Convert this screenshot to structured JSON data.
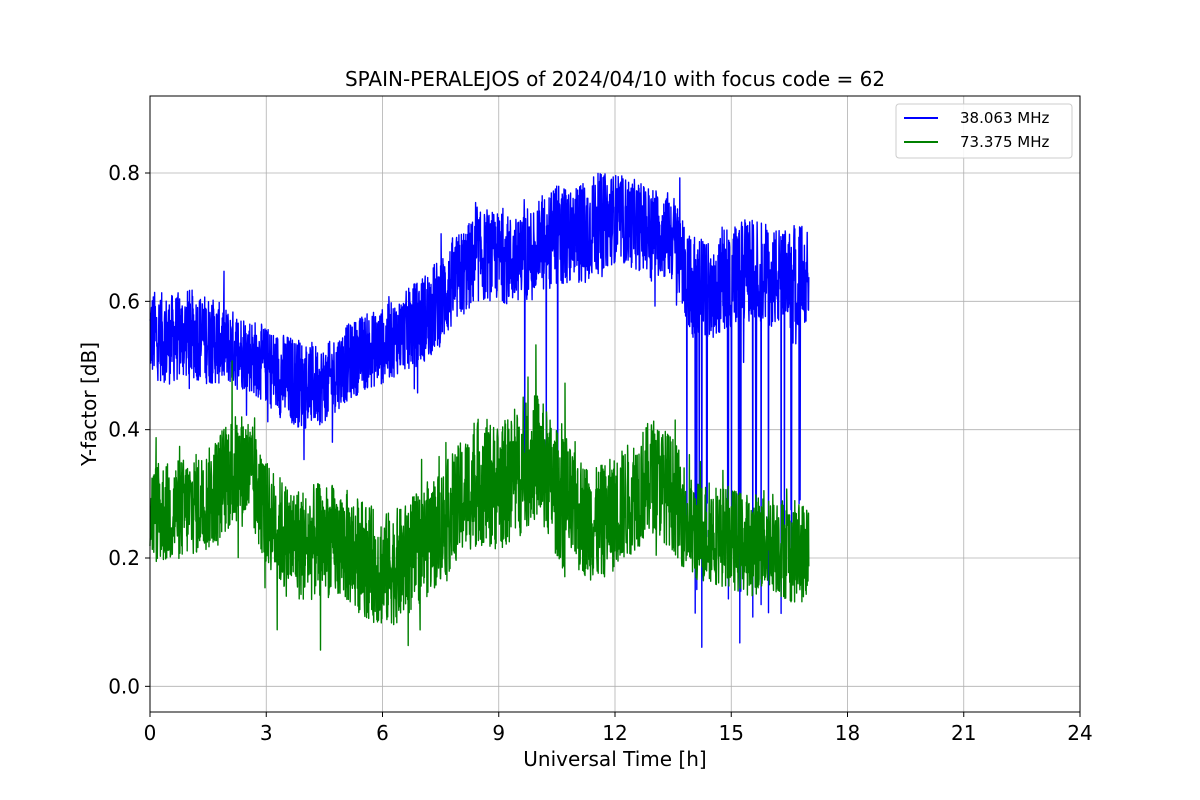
{
  "chart_data": {
    "type": "line",
    "title": "SPAIN-PERALEJOS of 2024/04/10 with focus code = 62",
    "xlabel": "Universal Time [h]",
    "ylabel": "Y-factor [dB]",
    "xlim": [
      0,
      24
    ],
    "ylim": [
      -0.04,
      0.92
    ],
    "xticks": [
      0,
      3,
      6,
      9,
      12,
      15,
      18,
      21,
      24
    ],
    "xtick_labels": [
      "0",
      "3",
      "6",
      "9",
      "12",
      "15",
      "18",
      "21",
      "24"
    ],
    "yticks": [
      0.0,
      0.2,
      0.4,
      0.6,
      0.8
    ],
    "ytick_labels": [
      "0.0",
      "0.2",
      "0.4",
      "0.6",
      "0.8"
    ],
    "grid": true,
    "legend_position": "top-right",
    "series": [
      {
        "name": "38.063 MHz",
        "color": "#0000ff",
        "x": [
          0.0,
          0.5,
          1.0,
          1.5,
          2.0,
          2.5,
          3.0,
          3.5,
          4.0,
          4.5,
          5.0,
          5.5,
          6.0,
          6.5,
          7.0,
          7.5,
          8.0,
          8.5,
          9.0,
          9.5,
          10.0,
          10.5,
          11.0,
          11.5,
          12.0,
          12.5,
          13.0,
          13.5,
          14.0,
          14.5,
          15.0,
          15.5,
          16.0,
          16.5,
          17.0
        ],
        "center": [
          0.55,
          0.54,
          0.55,
          0.54,
          0.53,
          0.52,
          0.5,
          0.48,
          0.47,
          0.47,
          0.5,
          0.52,
          0.53,
          0.55,
          0.57,
          0.6,
          0.64,
          0.67,
          0.67,
          0.66,
          0.68,
          0.7,
          0.7,
          0.72,
          0.73,
          0.72,
          0.71,
          0.7,
          0.62,
          0.62,
          0.64,
          0.65,
          0.64,
          0.63,
          0.65
        ],
        "amp": [
          0.07,
          0.07,
          0.07,
          0.07,
          0.06,
          0.06,
          0.06,
          0.07,
          0.07,
          0.06,
          0.06,
          0.06,
          0.06,
          0.06,
          0.07,
          0.07,
          0.07,
          0.07,
          0.07,
          0.07,
          0.08,
          0.08,
          0.08,
          0.08,
          0.07,
          0.07,
          0.07,
          0.07,
          0.08,
          0.08,
          0.08,
          0.08,
          0.08,
          0.08,
          0.08
        ]
      },
      {
        "name": "73.375 MHz",
        "color": "#008000",
        "x": [
          0.0,
          0.5,
          1.0,
          1.5,
          2.0,
          2.5,
          3.0,
          3.5,
          4.0,
          4.5,
          5.0,
          5.5,
          6.0,
          6.5,
          7.0,
          7.5,
          8.0,
          8.5,
          9.0,
          9.5,
          10.0,
          10.5,
          11.0,
          11.5,
          12.0,
          12.5,
          13.0,
          13.5,
          14.0,
          14.5,
          15.0,
          15.5,
          16.0,
          16.5,
          17.0
        ],
        "center": [
          0.27,
          0.27,
          0.28,
          0.29,
          0.33,
          0.34,
          0.27,
          0.23,
          0.22,
          0.23,
          0.22,
          0.2,
          0.18,
          0.19,
          0.22,
          0.25,
          0.29,
          0.32,
          0.31,
          0.33,
          0.36,
          0.3,
          0.27,
          0.25,
          0.27,
          0.3,
          0.33,
          0.3,
          0.24,
          0.24,
          0.23,
          0.22,
          0.23,
          0.21,
          0.21
        ],
        "amp": [
          0.08,
          0.08,
          0.08,
          0.08,
          0.09,
          0.09,
          0.08,
          0.09,
          0.09,
          0.09,
          0.09,
          0.09,
          0.09,
          0.09,
          0.09,
          0.09,
          0.09,
          0.1,
          0.1,
          0.1,
          0.1,
          0.1,
          0.09,
          0.09,
          0.09,
          0.09,
          0.09,
          0.09,
          0.08,
          0.08,
          0.08,
          0.08,
          0.08,
          0.08,
          0.08
        ]
      }
    ]
  }
}
